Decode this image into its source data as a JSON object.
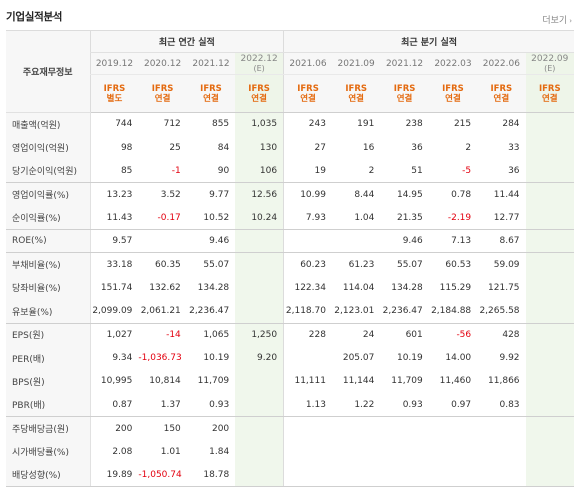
{
  "section": {
    "title": "기업실적분석",
    "more_label": "더보기",
    "more_icon": "chevron-right-icon"
  },
  "header": {
    "row_label": "주요재무정보",
    "annual_group": "최근 연간 실적",
    "quarter_group": "최근 분기 실적",
    "annual_periods": [
      {
        "date": "2019.12",
        "est": "",
        "basis1": "IFRS",
        "basis2": "별도"
      },
      {
        "date": "2020.12",
        "est": "",
        "basis1": "IFRS",
        "basis2": "연결"
      },
      {
        "date": "2021.12",
        "est": "",
        "basis1": "IFRS",
        "basis2": "연결"
      },
      {
        "date": "2022.12",
        "est": "(E)",
        "basis1": "IFRS",
        "basis2": "연결"
      }
    ],
    "quarter_periods": [
      {
        "date": "2021.06",
        "est": "",
        "basis1": "IFRS",
        "basis2": "연결"
      },
      {
        "date": "2021.09",
        "est": "",
        "basis1": "IFRS",
        "basis2": "연결"
      },
      {
        "date": "2021.12",
        "est": "",
        "basis1": "IFRS",
        "basis2": "연결"
      },
      {
        "date": "2022.03",
        "est": "",
        "basis1": "IFRS",
        "basis2": "연결"
      },
      {
        "date": "2022.06",
        "est": "",
        "basis1": "IFRS",
        "basis2": "연결"
      },
      {
        "date": "2022.09",
        "est": "(E)",
        "basis1": "IFRS",
        "basis2": "연결"
      }
    ]
  },
  "colors": {
    "ifrs": "#e46a0f",
    "negative": "#e3000f",
    "estimate_bg": "#f0f7ec",
    "header_bg": "#f7f7f7"
  },
  "rows": [
    {
      "label": "매출액(억원)",
      "values": [
        "744",
        "712",
        "855",
        "1,035",
        "243",
        "191",
        "238",
        "215",
        "284",
        ""
      ]
    },
    {
      "label": "영업이익(억원)",
      "values": [
        "98",
        "25",
        "84",
        "130",
        "27",
        "16",
        "36",
        "2",
        "33",
        ""
      ]
    },
    {
      "label": "당기순이익(억원)",
      "values": [
        "85",
        "-1",
        "90",
        "106",
        "19",
        "2",
        "51",
        "-5",
        "36",
        ""
      ]
    },
    {
      "label": "영업이익률(%)",
      "values": [
        "13.23",
        "3.52",
        "9.77",
        "12.56",
        "10.99",
        "8.44",
        "14.95",
        "0.78",
        "11.44",
        ""
      ]
    },
    {
      "label": "순이익률(%)",
      "values": [
        "11.43",
        "-0.17",
        "10.52",
        "10.24",
        "7.93",
        "1.04",
        "21.35",
        "-2.19",
        "12.77",
        ""
      ]
    },
    {
      "label": "ROE(%)",
      "values": [
        "9.57",
        "",
        "9.46",
        "",
        "",
        "",
        "9.46",
        "7.13",
        "8.67",
        ""
      ]
    },
    {
      "label": "부채비율(%)",
      "values": [
        "33.18",
        "60.35",
        "55.07",
        "",
        "60.23",
        "61.23",
        "55.07",
        "60.53",
        "59.09",
        ""
      ]
    },
    {
      "label": "당좌비율(%)",
      "values": [
        "151.74",
        "132.62",
        "134.28",
        "",
        "122.34",
        "114.04",
        "134.28",
        "115.29",
        "121.75",
        ""
      ]
    },
    {
      "label": "유보율(%)",
      "values": [
        "2,099.09",
        "2,061.21",
        "2,236.47",
        "",
        "2,118.70",
        "2,123.01",
        "2,236.47",
        "2,184.88",
        "2,265.58",
        ""
      ]
    },
    {
      "label": "EPS(원)",
      "values": [
        "1,027",
        "-14",
        "1,065",
        "1,250",
        "228",
        "24",
        "601",
        "-56",
        "428",
        ""
      ]
    },
    {
      "label": "PER(배)",
      "values": [
        "9.34",
        "-1,036.73",
        "10.19",
        "9.20",
        "",
        "205.07",
        "10.19",
        "14.00",
        "9.92",
        ""
      ]
    },
    {
      "label": "BPS(원)",
      "values": [
        "10,995",
        "10,814",
        "11,709",
        "",
        "11,111",
        "11,144",
        "11,709",
        "11,460",
        "11,866",
        ""
      ]
    },
    {
      "label": "PBR(배)",
      "values": [
        "0.87",
        "1.37",
        "0.93",
        "",
        "1.13",
        "1.22",
        "0.93",
        "0.97",
        "0.83",
        ""
      ]
    },
    {
      "label": "주당배당금(원)",
      "values": [
        "200",
        "150",
        "200",
        "",
        "",
        "",
        "",
        "",
        "",
        ""
      ]
    },
    {
      "label": "시가배당률(%)",
      "values": [
        "2.08",
        "1.01",
        "1.84",
        "",
        "",
        "",
        "",
        "",
        "",
        ""
      ]
    },
    {
      "label": "배당성향(%)",
      "values": [
        "19.89",
        "-1,050.74",
        "18.78",
        "",
        "",
        "",
        "",
        "",
        "",
        ""
      ]
    }
  ]
}
